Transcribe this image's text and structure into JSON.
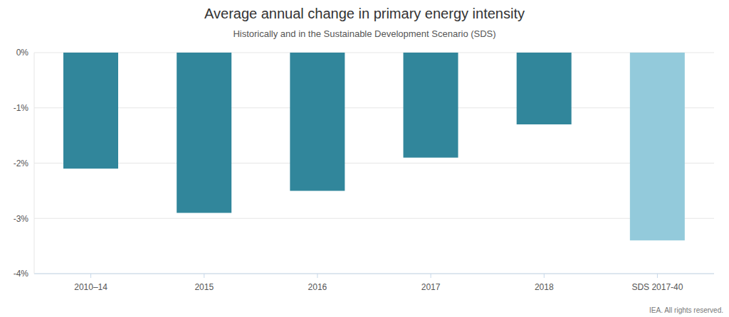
{
  "chart_data": {
    "type": "bar",
    "title": "Average annual change in primary energy intensity",
    "subtitle": "Historically and in the Sustainable Development Scenario (SDS)",
    "annotation": "IEA. All rights reserved.",
    "categories": [
      "2010–14",
      "2015",
      "2016",
      "2017",
      "2018",
      "SDS 2017-40"
    ],
    "values": [
      -2.1,
      -2.9,
      -2.5,
      -1.9,
      -1.3,
      -3.4
    ],
    "colors": [
      "#31869b",
      "#31869b",
      "#31869b",
      "#31869b",
      "#31869b",
      "#93cadb"
    ],
    "ylim": [
      -4,
      0
    ],
    "yticks": [
      {
        "value": -4,
        "label": "-4%"
      },
      {
        "value": -3,
        "label": "-3%"
      },
      {
        "value": -2,
        "label": "-2%"
      },
      {
        "value": -1,
        "label": "-1%"
      },
      {
        "value": 0,
        "label": "0%"
      }
    ],
    "grid": true
  }
}
